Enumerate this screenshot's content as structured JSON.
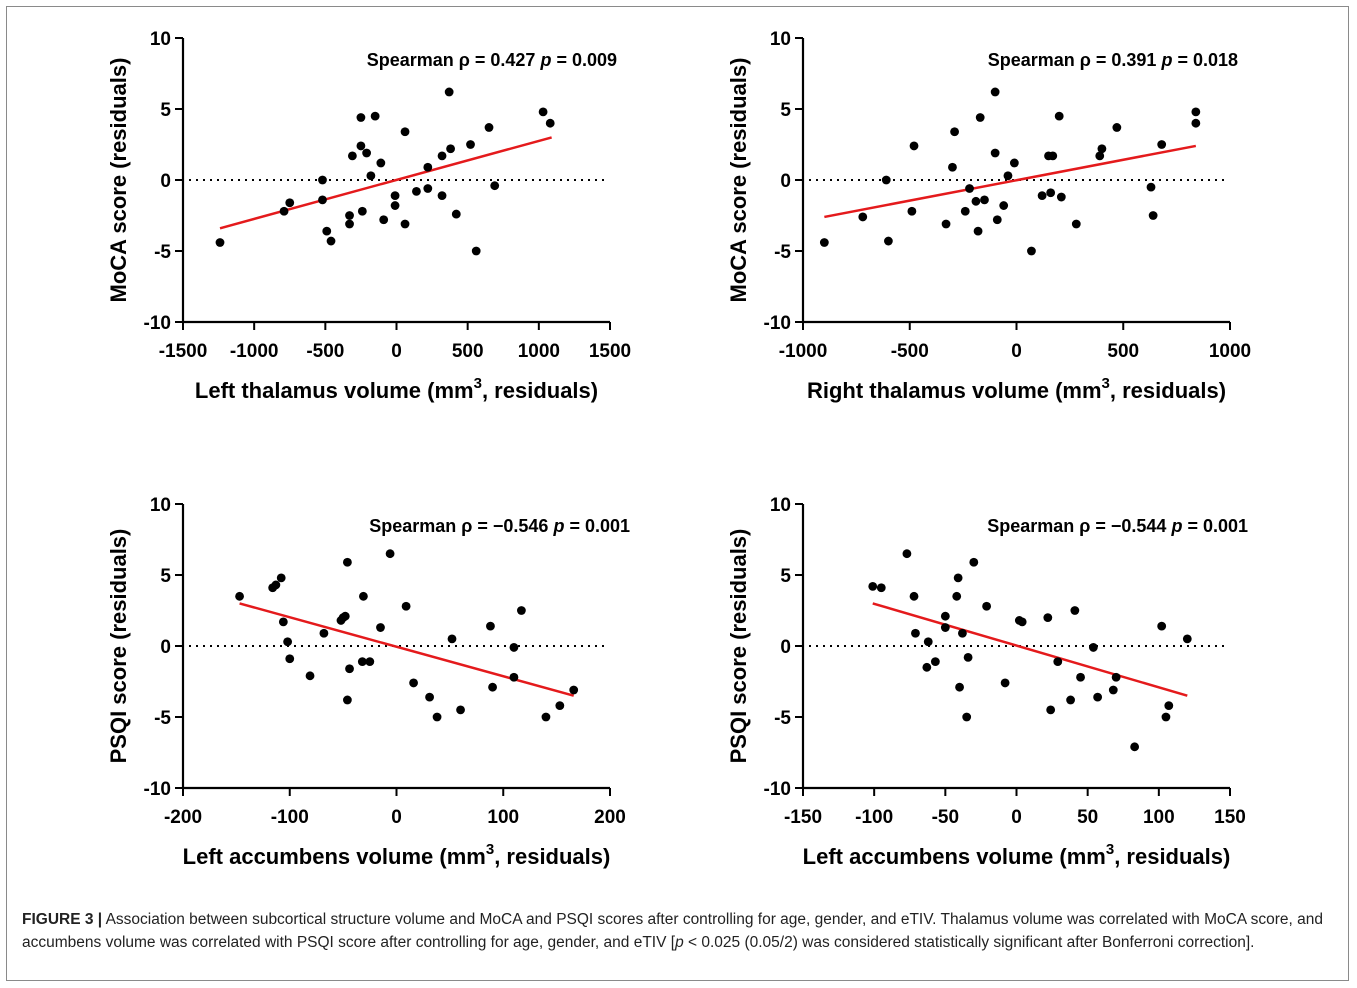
{
  "caption": {
    "label": "FIGURE 3 |",
    "text_1": " Association between subcortical structure volume and MoCA and PSQI scores after controlling for age, gender, and eTIV. Thalamus volume was correlated with MoCA score, and accumbens volume was correlated with PSQI score after controlling for age, gender, and eTIV [",
    "p_symbol": "p",
    "text_2": " < 0.025 (0.05/2) was considered statistically significant after Bonferroni correction]."
  },
  "colors": {
    "points": "#000000",
    "fit_line": "#e41a1c",
    "axis": "#000000",
    "caption_text": "#222222"
  },
  "chart_data": [
    {
      "type": "scatter",
      "xlabel": "Left thalamus volume (mm",
      "xlabel_sup": "3",
      "xlabel_tail": ", residuals)",
      "ylabel": "MoCA score (residuals)",
      "annotation_prefix": "Spearman ρ = 0.427 ",
      "annotation_p": "p",
      "annotation_suffix": " = 0.009",
      "xlim": [
        -1500,
        1500
      ],
      "ylim": [
        -10,
        10
      ],
      "xticks": [
        -1500,
        -1000,
        -500,
        0,
        500,
        1000,
        1500
      ],
      "xtick_labels": [
        "-1500",
        "-1000",
        "-500",
        "0",
        "500",
        "1000",
        "1500"
      ],
      "yticks": [
        -10,
        -5,
        0,
        5,
        10
      ],
      "ytick_labels": [
        "-10",
        "-5",
        "0",
        "5",
        "10"
      ],
      "zero_reference_line": true,
      "fit_line": {
        "x": [
          -1240,
          1090
        ],
        "y": [
          -3.4,
          3.0
        ]
      },
      "x": [
        -1240,
        -790,
        -750,
        -520,
        -520,
        -490,
        -460,
        -330,
        -330,
        -310,
        -250,
        -250,
        -240,
        -210,
        -180,
        -150,
        -110,
        -90,
        -10,
        -10,
        60,
        60,
        140,
        220,
        220,
        320,
        320,
        370,
        380,
        420,
        520,
        560,
        650,
        690,
        1030,
        1080
      ],
      "y": [
        -4.4,
        -2.2,
        -1.6,
        0.0,
        -1.4,
        -3.6,
        -4.3,
        -2.5,
        -3.1,
        1.7,
        4.4,
        2.4,
        -2.2,
        1.9,
        0.3,
        4.5,
        1.2,
        -2.8,
        -1.1,
        -1.8,
        3.4,
        -3.1,
        -0.8,
        -0.6,
        0.9,
        1.7,
        -1.1,
        6.2,
        2.2,
        -2.4,
        2.5,
        -5.0,
        3.7,
        -0.4,
        4.8,
        4.0
      ]
    },
    {
      "type": "scatter",
      "xlabel": "Right thalamus volume (mm",
      "xlabel_sup": "3",
      "xlabel_tail": ", residuals)",
      "ylabel": "MoCA score (residuals)",
      "annotation_prefix": "Spearman ρ = 0.391 ",
      "annotation_p": "p",
      "annotation_suffix": " = 0.018",
      "xlim": [
        -1000,
        1000
      ],
      "ylim": [
        -10,
        10
      ],
      "xticks": [
        -1000,
        -500,
        0,
        500,
        1000
      ],
      "xtick_labels": [
        "-1000",
        "-500",
        "0",
        "500",
        "1000"
      ],
      "yticks": [
        -10,
        -5,
        0,
        5,
        10
      ],
      "ytick_labels": [
        "-10",
        "-5",
        "0",
        "5",
        "10"
      ],
      "zero_reference_line": true,
      "fit_line": {
        "x": [
          -900,
          840
        ],
        "y": [
          -2.6,
          2.4
        ]
      },
      "x": [
        -900,
        -720,
        -610,
        -600,
        -490,
        -480,
        -330,
        -300,
        -290,
        -240,
        -220,
        -190,
        -180,
        -170,
        -150,
        -100,
        -100,
        -90,
        -60,
        -40,
        -10,
        70,
        120,
        150,
        160,
        170,
        200,
        210,
        280,
        390,
        400,
        470,
        630,
        640,
        680,
        840,
        840
      ],
      "y": [
        -4.4,
        -2.6,
        0.0,
        -4.3,
        -2.2,
        2.4,
        -3.1,
        0.9,
        3.4,
        -2.2,
        -0.6,
        -1.5,
        -3.6,
        4.4,
        -1.4,
        6.2,
        1.9,
        -2.8,
        -1.8,
        0.3,
        1.2,
        -5.0,
        -1.1,
        1.7,
        -0.9,
        1.7,
        4.5,
        -1.2,
        -3.1,
        1.7,
        2.2,
        3.7,
        -0.5,
        -2.5,
        2.5,
        4.8,
        4.0
      ]
    },
    {
      "type": "scatter",
      "xlabel": "Left accumbens volume (mm",
      "xlabel_sup": "3",
      "xlabel_tail": ", residuals)",
      "ylabel": "PSQI score (residuals)",
      "annotation_prefix": "Spearman ρ = −0.546 ",
      "annotation_p": "p",
      "annotation_suffix": " = 0.001",
      "xlim": [
        -200,
        200
      ],
      "ylim": [
        -10,
        10
      ],
      "xticks": [
        -200,
        -100,
        0,
        100,
        200
      ],
      "xtick_labels": [
        "-200",
        "-100",
        "0",
        "100",
        "200"
      ],
      "yticks": [
        -10,
        -5,
        0,
        5,
        10
      ],
      "ytick_labels": [
        "-10",
        "-5",
        "0",
        "5",
        "10"
      ],
      "zero_reference_line": true,
      "fit_line": {
        "x": [
          -147,
          166
        ],
        "y": [
          3.0,
          -3.5
        ]
      },
      "x": [
        -147,
        -116,
        -113,
        -108,
        -106,
        -102,
        -100,
        -81,
        -68,
        -52,
        -50,
        -48,
        -46,
        -44,
        -46,
        -32,
        -31,
        -25,
        -15,
        -6,
        9,
        16,
        31,
        38,
        52,
        60,
        88,
        90,
        110,
        110,
        117,
        140,
        153,
        166
      ],
      "y": [
        3.5,
        4.1,
        4.3,
        4.8,
        1.7,
        0.3,
        -0.9,
        -2.1,
        0.9,
        1.8,
        2.0,
        2.1,
        5.9,
        -1.6,
        -3.8,
        -1.1,
        3.5,
        -1.1,
        1.3,
        6.5,
        2.8,
        -2.6,
        -3.6,
        -5.0,
        0.5,
        -4.5,
        1.4,
        -2.9,
        -0.1,
        -2.2,
        2.5,
        -5.0,
        -4.2,
        -3.1
      ]
    },
    {
      "type": "scatter",
      "xlabel": "Left accumbens volume (mm",
      "xlabel_sup": "3",
      "xlabel_tail": ", residuals)",
      "ylabel": "PSQI score (residuals)",
      "annotation_prefix": "Spearman ρ = −0.544 ",
      "annotation_p": "p",
      "annotation_suffix": " = 0.001",
      "xlim": [
        -150,
        150
      ],
      "ylim": [
        -10,
        10
      ],
      "xticks": [
        -150,
        -100,
        -50,
        0,
        50,
        100,
        150
      ],
      "xtick_labels": [
        "-150",
        "-100",
        "-50",
        "0",
        "50",
        "100",
        "150"
      ],
      "yticks": [
        -10,
        -5,
        0,
        5,
        10
      ],
      "ytick_labels": [
        "-10",
        "-5",
        "0",
        "5",
        "10"
      ],
      "zero_reference_line": true,
      "fit_line": {
        "x": [
          -101,
          120
        ],
        "y": [
          3.0,
          -3.5
        ]
      },
      "x": [
        -101,
        -95,
        -77,
        -72,
        -71,
        -63,
        -62,
        -57,
        -50,
        -50,
        -42,
        -41,
        -40,
        -38,
        -35,
        -34,
        -30,
        -21,
        -8,
        2,
        4,
        22,
        24,
        29,
        38,
        41,
        45,
        54,
        57,
        68,
        70,
        83,
        102,
        105,
        107,
        120
      ],
      "y": [
        4.2,
        4.1,
        6.5,
        3.5,
        0.9,
        -1.5,
        0.3,
        -1.1,
        2.1,
        1.3,
        3.5,
        4.8,
        -2.9,
        0.9,
        -5.0,
        -0.8,
        5.9,
        2.8,
        -2.6,
        1.8,
        1.7,
        2.0,
        -4.5,
        -1.1,
        -3.8,
        2.5,
        -2.2,
        -0.1,
        -3.6,
        -3.1,
        -2.2,
        -7.1,
        1.4,
        -5.0,
        -4.2,
        0.5
      ]
    }
  ]
}
